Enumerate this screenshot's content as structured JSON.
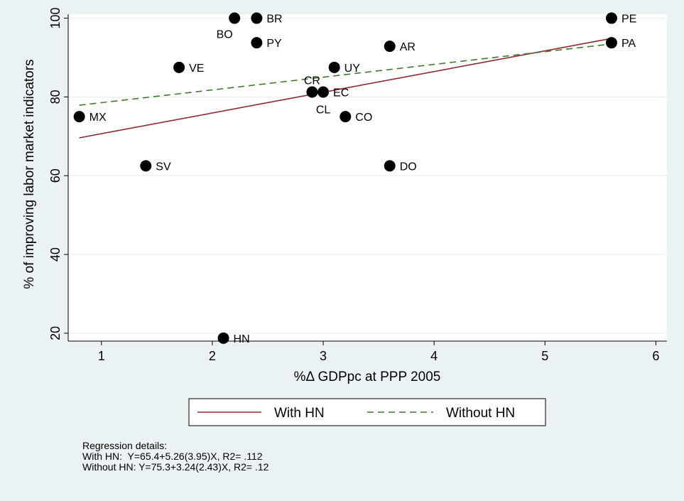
{
  "chart_data": {
    "type": "scatter",
    "xlabel": "%Δ GDPpc at PPP 2005",
    "ylabel": "% of improving labor market indicators",
    "xlim": [
      0.7,
      6.1
    ],
    "ylim": [
      18,
      101
    ],
    "xticks": [
      1,
      2,
      3,
      4,
      5,
      6
    ],
    "yticks": [
      20,
      40,
      60,
      80,
      100
    ],
    "grid": "horizontal",
    "points": [
      {
        "label": "MX",
        "x": 0.8,
        "y": 75,
        "label_pos": "right"
      },
      {
        "label": "SV",
        "x": 1.4,
        "y": 62.5,
        "label_pos": "right"
      },
      {
        "label": "VE",
        "x": 1.7,
        "y": 87.5,
        "label_pos": "right"
      },
      {
        "label": "HN",
        "x": 2.1,
        "y": 18.75,
        "label_pos": "right"
      },
      {
        "label": "BO",
        "x": 2.2,
        "y": 100,
        "label_pos": "below-left"
      },
      {
        "label": "BR",
        "x": 2.4,
        "y": 100,
        "label_pos": "right"
      },
      {
        "label": "PY",
        "x": 2.4,
        "y": 93.75,
        "label_pos": "right"
      },
      {
        "label": "CR",
        "x": 2.9,
        "y": 81.25,
        "label_pos": "above"
      },
      {
        "label": "EC",
        "x": 3.0,
        "y": 81.25,
        "label_pos": "right"
      },
      {
        "label": "CL",
        "x": 3.0,
        "y": 81.25,
        "label_pos": "below"
      },
      {
        "label": "UY",
        "x": 3.1,
        "y": 87.5,
        "label_pos": "right"
      },
      {
        "label": "CO",
        "x": 3.2,
        "y": 75,
        "label_pos": "right"
      },
      {
        "label": "AR",
        "x": 3.6,
        "y": 92.86,
        "label_pos": "right"
      },
      {
        "label": "DO",
        "x": 3.6,
        "y": 62.5,
        "label_pos": "right"
      },
      {
        "label": "PE",
        "x": 5.6,
        "y": 100,
        "label_pos": "right"
      },
      {
        "label": "PA",
        "x": 5.6,
        "y": 93.75,
        "label_pos": "right"
      }
    ],
    "series": [
      {
        "name": "With HN",
        "type": "line",
        "style": "solid",
        "color": "#8b2a2f",
        "intercept": 65.4,
        "slope": 5.26,
        "x_range": [
          0.8,
          5.6
        ]
      },
      {
        "name": "Without HN",
        "type": "line",
        "style": "dashed",
        "color": "#3e7a2e",
        "intercept": 75.3,
        "slope": 3.24,
        "x_range": [
          0.8,
          5.6
        ]
      }
    ],
    "legend": {
      "position": "bottom",
      "items": [
        "With HN",
        "Without HN"
      ]
    },
    "notes": [
      "Regression details:",
      "With HN:  Y=65.4+5.26(3.95)X, R2= .112",
      "Without HN: Y=75.3+3.24(2.43)X, R2= .12"
    ]
  }
}
